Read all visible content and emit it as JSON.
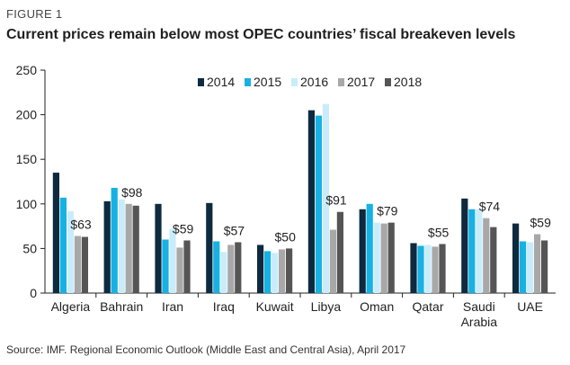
{
  "figure_label": "FIGURE 1",
  "title": "Current prices remain below most OPEC countries’ fiscal breakeven levels",
  "source": "Source: IMF. Regional Economic Outlook (Middle East and Central Asia), April 2017",
  "colors": {
    "2014": "#0d2a3f",
    "2015": "#17b1e3",
    "2016": "#c9ecfa",
    "2017": "#a8a8a8",
    "2018": "#555555",
    "axis": "#222222"
  },
  "chart_data": {
    "type": "bar",
    "title": "Current prices remain below most OPEC countries’ fiscal breakeven levels",
    "xlabel": "",
    "ylabel": "",
    "ylim": [
      0,
      250
    ],
    "yticks": [
      0,
      50,
      100,
      150,
      200,
      250
    ],
    "grid": false,
    "legend_position": "top-center",
    "categories": [
      "Algeria",
      "Bahrain",
      "Iran",
      "Iraq",
      "Kuwait",
      "Libya",
      "Oman",
      "Qatar",
      "Saudi Arabia",
      "UAE"
    ],
    "category_lines": [
      [
        "Algeria"
      ],
      [
        "Bahrain"
      ],
      [
        "Iran"
      ],
      [
        "Iraq"
      ],
      [
        "Kuwait"
      ],
      [
        "Libya"
      ],
      [
        "Oman"
      ],
      [
        "Qatar"
      ],
      [
        "Saudi",
        "Arabia"
      ],
      [
        "UAE"
      ]
    ],
    "series": [
      {
        "name": "2014",
        "values": [
          135,
          103,
          100,
          101,
          54,
          205,
          94,
          56,
          106,
          78
        ]
      },
      {
        "name": "2015",
        "values": [
          107,
          118,
          60,
          58,
          47,
          199,
          100,
          53,
          94,
          58
        ]
      },
      {
        "name": "2016",
        "values": [
          92,
          105,
          72,
          46,
          45,
          212,
          79,
          54,
          94,
          57
        ]
      },
      {
        "name": "2017",
        "values": [
          64,
          100,
          51,
          54,
          49,
          71,
          78,
          52,
          84,
          66
        ]
      },
      {
        "name": "2018",
        "values": [
          63,
          98,
          59,
          57,
          50,
          91,
          79,
          55,
          74,
          59
        ]
      }
    ],
    "annotations": [
      "$63",
      "$98",
      "$59",
      "$57",
      "$50",
      "$91",
      "$79",
      "$55",
      "$74",
      "$59"
    ]
  }
}
